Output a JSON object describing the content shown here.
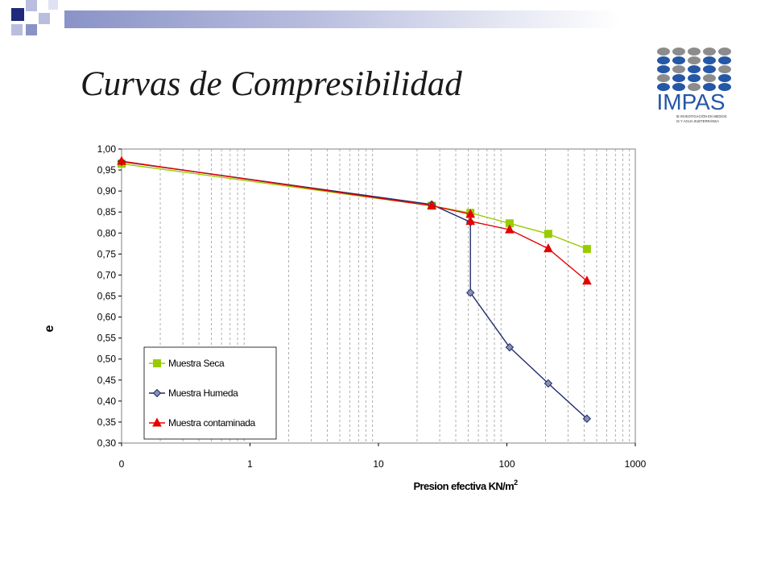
{
  "slide": {
    "title": "Curvas de Compresibilidad"
  },
  "logo": {
    "text": "IMPAS",
    "subtext_1": "IE INVESTIGACIÓN EN MEDIOS",
    "subtext_2": "IS Y AGUA SUBTERRÁNEA"
  },
  "colors": {
    "deco_dark": "#1f2a7a",
    "deco_light": "#8a93c7",
    "logo_blue": "#2457a6",
    "logo_gray": "#8c8c8c"
  },
  "chart_data": {
    "type": "line",
    "xscale": "log",
    "xlabel": "Presion efectiva KN/m",
    "xlabel_sup": "2",
    "ylabel": "e",
    "xlim": [
      0.1,
      1000
    ],
    "ylim": [
      0.3,
      1.0
    ],
    "x_ticks": [
      {
        "value": 0.1,
        "label": "0"
      },
      {
        "value": 1,
        "label": "1"
      },
      {
        "value": 10,
        "label": "10"
      },
      {
        "value": 100,
        "label": "100"
      },
      {
        "value": 1000,
        "label": "1000"
      }
    ],
    "y_ticks": [
      "1,00",
      "0,95",
      "0,90",
      "0,85",
      "0,80",
      "0,75",
      "0,70",
      "0,65",
      "0,60",
      "0,55",
      "0,50",
      "0,45",
      "0,40",
      "0,35",
      "0,30"
    ],
    "grid": {
      "vertical_minor": true,
      "horizontal": false
    },
    "legend_position": "bottom-left",
    "series": [
      {
        "name": "Muestra Seca",
        "color": "#99cc00",
        "marker": "square",
        "points": [
          [
            0.1,
            0.965
          ],
          [
            26,
            0.865
          ],
          [
            52,
            0.848
          ],
          [
            105,
            0.823
          ],
          [
            210,
            0.798
          ],
          [
            420,
            0.762
          ]
        ]
      },
      {
        "name": "Muestra Humeda",
        "color": "#1f2a6e",
        "marker": "diamond",
        "points": [
          [
            0.1,
            0.97
          ],
          [
            26,
            0.868
          ],
          [
            52,
            0.826
          ],
          [
            52,
            0.658
          ],
          [
            105,
            0.528
          ],
          [
            210,
            0.442
          ],
          [
            420,
            0.358
          ]
        ]
      },
      {
        "name": "Muestra contaminada",
        "color": "#e60000",
        "marker": "triangle",
        "points": [
          [
            0.1,
            0.971
          ],
          [
            26,
            0.865
          ],
          [
            52,
            0.845
          ],
          [
            52,
            0.828
          ],
          [
            105,
            0.808
          ],
          [
            210,
            0.763
          ],
          [
            420,
            0.686
          ]
        ]
      }
    ]
  }
}
